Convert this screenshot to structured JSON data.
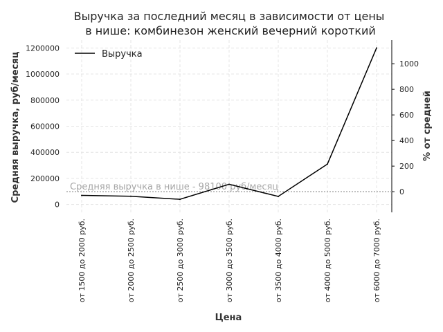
{
  "chart_data": {
    "type": "line",
    "title_lines": [
      "Выручка за последний месяц в зависимости от цены",
      "в нише: комбинезон женский вечерний короткий"
    ],
    "xlabel": "Цена",
    "ylabel": "Средняя выручка, руб/месяц",
    "y2label": "% от средней",
    "categories": [
      "от 1500 до 2000 руб.",
      "от 2000 до 2500 руб.",
      "от 2500 до 3000 руб.",
      "от 3000 до 3500 руб.",
      "от 3500 до 4000 руб.",
      "от 4000 до 5000 руб.",
      "от 6000 до 7000 руб."
    ],
    "series": [
      {
        "name": "Выручка",
        "values": [
          70000,
          63000,
          40000,
          155000,
          62000,
          310000,
          1200000
        ],
        "color": "#000000"
      }
    ],
    "average": {
      "value": 98100,
      "label": "Средняя выручка в нише - 98100 руб/месяц",
      "color": "#a6a6a6"
    },
    "ylim": [
      -60000,
      1260000
    ],
    "yticks": [
      0,
      200000,
      400000,
      600000,
      800000,
      1000000,
      1200000
    ],
    "y2ticks": [
      0,
      200,
      400,
      600,
      800,
      1000
    ],
    "legend_position": "top-left",
    "grid": true
  }
}
